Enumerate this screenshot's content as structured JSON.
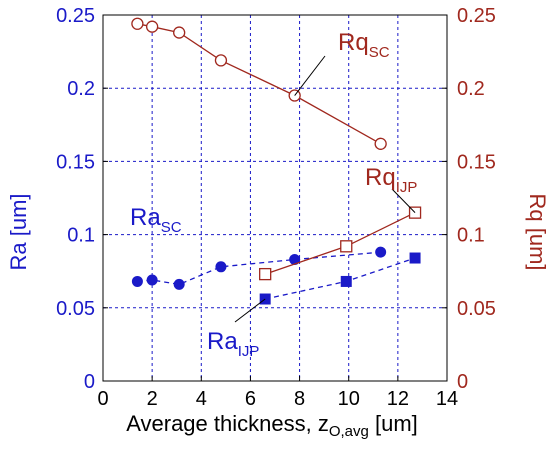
{
  "chart_data": {
    "type": "scatter",
    "xlabel": "Average thickness, z",
    "xlabel_sub": "O,avg",
    "xlabel_unit": " [um]",
    "ylabel": "Ra [um]",
    "y2label": "Rq [um]",
    "xlim": [
      0,
      14
    ],
    "ylim": [
      0,
      0.25
    ],
    "y2lim": [
      0,
      0.25
    ],
    "x_ticks": [
      "0",
      "2",
      "4",
      "6",
      "8",
      "10",
      "12",
      "14"
    ],
    "y_ticks": [
      "0",
      "0.05",
      "0.1",
      "0.15",
      "0.2",
      "0.25"
    ],
    "y2_ticks": [
      "0",
      "0.05",
      "0.1",
      "0.15",
      "0.2",
      "0.25"
    ],
    "grid": true,
    "series": [
      {
        "name": "Ra_SC",
        "label_main": "Ra",
        "label_sub": "SC",
        "axis": "left",
        "color": "#1a1ac8",
        "marker": "filled-circle",
        "line": "dashed",
        "x": [
          1.4,
          2.0,
          3.1,
          4.8,
          7.8,
          11.3
        ],
        "y": [
          0.068,
          0.069,
          0.066,
          0.078,
          0.083,
          0.088
        ]
      },
      {
        "name": "Ra_IJP",
        "label_main": "Ra",
        "label_sub": "IJP",
        "axis": "left",
        "color": "#1a1ac8",
        "marker": "filled-square",
        "line": "dashed",
        "x": [
          6.6,
          9.9,
          12.7
        ],
        "y": [
          0.056,
          0.068,
          0.084
        ]
      },
      {
        "name": "Rq_SC",
        "label_main": "Rq",
        "label_sub": "SC",
        "axis": "right",
        "color": "#a0281e",
        "marker": "open-circle",
        "line": "solid",
        "x": [
          1.4,
          2.0,
          3.1,
          4.8,
          7.8,
          11.3
        ],
        "y": [
          0.244,
          0.242,
          0.238,
          0.219,
          0.195,
          0.162
        ]
      },
      {
        "name": "Rq_IJP",
        "label_main": "Rq",
        "label_sub": "IJP",
        "axis": "right",
        "color": "#a0281e",
        "marker": "open-square",
        "line": "solid",
        "x": [
          6.6,
          9.9,
          12.7
        ],
        "y": [
          0.073,
          0.092,
          0.115
        ]
      }
    ],
    "annotations": [
      {
        "series": "Rq_SC",
        "main": "Rq",
        "sub": "SC",
        "color": "#a0281e",
        "leader_to_index": 4
      },
      {
        "series": "Rq_IJP",
        "main": "Rq",
        "sub": "IJP",
        "color": "#a0281e",
        "leader_to_index": 2
      },
      {
        "series": "Ra_SC",
        "main": "Ra",
        "sub": "SC",
        "color": "#1a1ac8",
        "leader_to_index": null
      },
      {
        "series": "Ra_IJP",
        "main": "Ra",
        "sub": "IJP",
        "color": "#1a1ac8",
        "leader_to_index": 0
      }
    ]
  }
}
